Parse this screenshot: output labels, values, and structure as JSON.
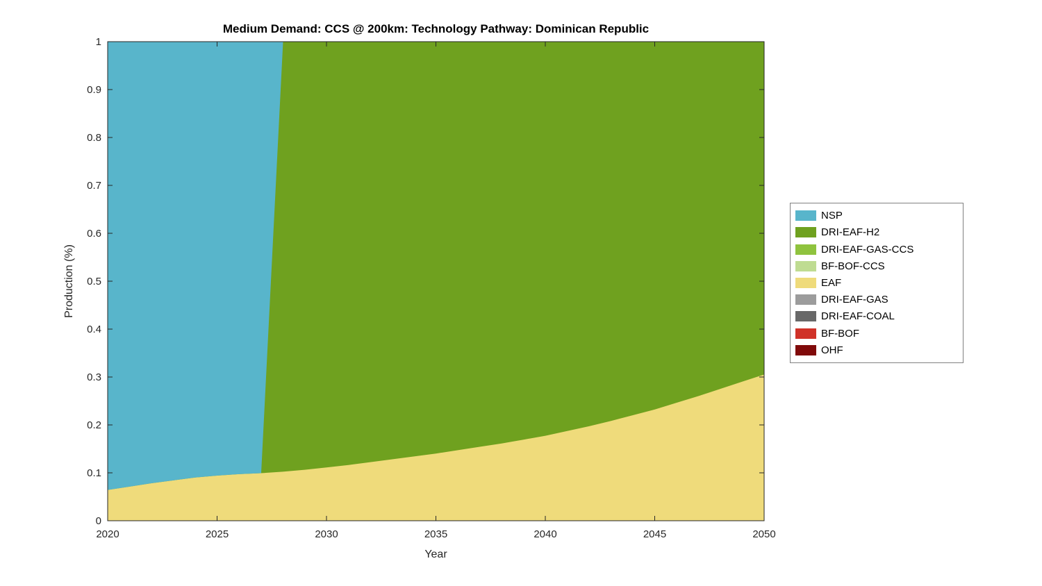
{
  "figure": {
    "background": "#ffffff"
  },
  "chart_data": {
    "type": "area",
    "stacked": true,
    "title": "Medium Demand: CCS @ 200km: Technology Pathway: Dominican Republic",
    "xlabel": "Year",
    "ylabel": "Production (%)",
    "xlim": [
      2020,
      2050
    ],
    "ylim": [
      0,
      1
    ],
    "xticks": [
      2020,
      2025,
      2030,
      2035,
      2040,
      2045,
      2050
    ],
    "yticks": [
      0,
      0.1,
      0.2,
      0.3,
      0.4,
      0.5,
      0.6,
      0.7,
      0.8,
      0.9,
      1
    ],
    "grid": false,
    "axis_color": "#262626",
    "legend_position": "right-outside",
    "x": [
      2020,
      2021,
      2022,
      2023,
      2024,
      2025,
      2026,
      2027,
      2028,
      2029,
      2030,
      2031,
      2032,
      2033,
      2034,
      2035,
      2036,
      2037,
      2038,
      2039,
      2040,
      2041,
      2042,
      2043,
      2044,
      2045,
      2046,
      2047,
      2048,
      2049,
      2050
    ],
    "stack_order": [
      "EAF",
      "DRI-EAF-H2",
      "NSP"
    ],
    "series": [
      {
        "name": "NSP",
        "color": "#58B5CB",
        "values": [
          0.935,
          0.928,
          0.921,
          0.915,
          0.909,
          0.905,
          0.902,
          0.9,
          0,
          0,
          0,
          0,
          0,
          0,
          0,
          0,
          0,
          0,
          0,
          0,
          0,
          0,
          0,
          0,
          0,
          0,
          0,
          0,
          0,
          0,
          0
        ]
      },
      {
        "name": "DRI-EAF-H2",
        "color": "#6FA11F",
        "values": [
          0,
          0,
          0,
          0,
          0,
          0,
          0,
          0,
          0.897,
          0.893,
          0.888,
          0.883,
          0.877,
          0.871,
          0.865,
          0.859,
          0.852,
          0.845,
          0.838,
          0.83,
          0.822,
          0.812,
          0.802,
          0.791,
          0.779,
          0.767,
          0.753,
          0.739,
          0.724,
          0.709,
          0.694
        ]
      },
      {
        "name": "DRI-EAF-GAS-CCS",
        "color": "#8FC33E",
        "values": []
      },
      {
        "name": "BF-BOF-CCS",
        "color": "#BFDC92",
        "values": []
      },
      {
        "name": "EAF",
        "color": "#EFDB7B",
        "values": [
          0.065,
          0.072,
          0.079,
          0.085,
          0.091,
          0.095,
          0.098,
          0.1,
          0.103,
          0.107,
          0.112,
          0.117,
          0.123,
          0.129,
          0.135,
          0.141,
          0.148,
          0.155,
          0.162,
          0.17,
          0.178,
          0.188,
          0.198,
          0.209,
          0.221,
          0.233,
          0.247,
          0.261,
          0.276,
          0.291,
          0.306
        ]
      },
      {
        "name": "DRI-EAF-GAS",
        "color": "#9C9C9C",
        "values": []
      },
      {
        "name": "DRI-EAF-COAL",
        "color": "#686868",
        "values": []
      },
      {
        "name": "BF-BOF",
        "color": "#D03228",
        "values": []
      },
      {
        "name": "OHF",
        "color": "#800A0A",
        "values": []
      }
    ]
  }
}
